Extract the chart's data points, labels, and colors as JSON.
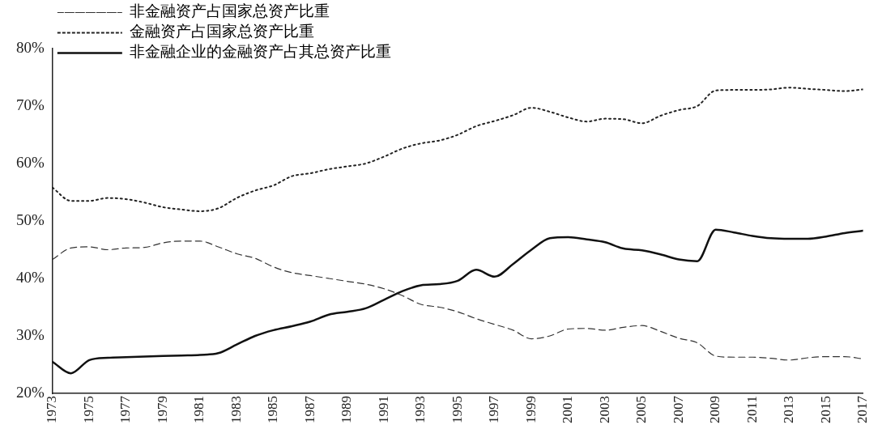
{
  "chart_data": {
    "type": "line",
    "legend": "top left",
    "grid": false,
    "marker": "none",
    "x": [
      1973,
      1974,
      1975,
      1976,
      1977,
      1978,
      1979,
      1980,
      1981,
      1982,
      1983,
      1984,
      1985,
      1986,
      1987,
      1988,
      1989,
      1990,
      1991,
      1992,
      1993,
      1994,
      1995,
      1996,
      1997,
      1998,
      1999,
      2000,
      2001,
      2002,
      2003,
      2004,
      2005,
      2006,
      2007,
      2008,
      2009,
      2010,
      2011,
      2012,
      2013,
      2014,
      2015,
      2016,
      2017
    ],
    "xlim": [
      1973,
      2017
    ],
    "xticks": [
      1973,
      1975,
      1977,
      1979,
      1981,
      1983,
      1985,
      1987,
      1989,
      1991,
      1993,
      1995,
      1997,
      1999,
      2001,
      2003,
      2005,
      2007,
      2009,
      2011,
      2013,
      2015,
      2017
    ],
    "ylim": [
      20,
      80
    ],
    "yticks": [
      {
        "value": 20,
        "label": "20%"
      },
      {
        "value": 30,
        "label": "30%"
      },
      {
        "value": 40,
        "label": "40%"
      },
      {
        "value": 50,
        "label": "50%"
      },
      {
        "value": 60,
        "label": "60%"
      },
      {
        "value": 70,
        "label": "70%"
      },
      {
        "value": 80,
        "label": "80%"
      }
    ],
    "series": [
      {
        "name": "非金融资产占国家总资产比重",
        "color": "#333333",
        "line_style": "dashed",
        "values": [
          43.3,
          45.3,
          45.5,
          45,
          45.3,
          45.4,
          46.2,
          46.5,
          46.5,
          45.5,
          44.3,
          43.5,
          42,
          41,
          40.5,
          40,
          39.5,
          39,
          38.2,
          37,
          35.5,
          35,
          34.2,
          33,
          32,
          31,
          29.5,
          30,
          31.2,
          31.3,
          31,
          31.5,
          31.8,
          30.8,
          29.6,
          28.8,
          26.5,
          26.3,
          26.3,
          26.1,
          25.8,
          26.2,
          26.4,
          26.4,
          26
        ]
      },
      {
        "name": "金融资产占国家总资产比重",
        "color": "#222222",
        "line_style": "dotted",
        "values": [
          55.8,
          53.5,
          53.5,
          54,
          53.8,
          53.2,
          52.4,
          52,
          51.7,
          52.2,
          54,
          55.3,
          56.2,
          57.8,
          58.3,
          59,
          59.5,
          60,
          61.2,
          62.6,
          63.5,
          64,
          65,
          66.5,
          67.4,
          68.4,
          69.7,
          69,
          68,
          67.3,
          67.8,
          67.7,
          67,
          68.3,
          69.3,
          70,
          72.7,
          72.8,
          72.8,
          72.9,
          73.2,
          73,
          72.8,
          72.6,
          72.9
        ]
      },
      {
        "name": "非金融企业的金融资产占其总资产比重",
        "color": "#111111",
        "line_style": "solid",
        "values": [
          25.5,
          23.5,
          25.8,
          26.2,
          26.3,
          26.4,
          26.5,
          26.6,
          26.7,
          27,
          28.5,
          30,
          31,
          31.7,
          32.5,
          33.7,
          34.2,
          34.8,
          36.3,
          37.8,
          38.8,
          39,
          39.6,
          41.5,
          40.3,
          42.5,
          45,
          47,
          47.2,
          46.8,
          46.3,
          45.2,
          44.9,
          44.2,
          43.3,
          43,
          48.5,
          48,
          47.4,
          47,
          46.9,
          46.9,
          47.3,
          47.9,
          48.3
        ]
      }
    ]
  }
}
